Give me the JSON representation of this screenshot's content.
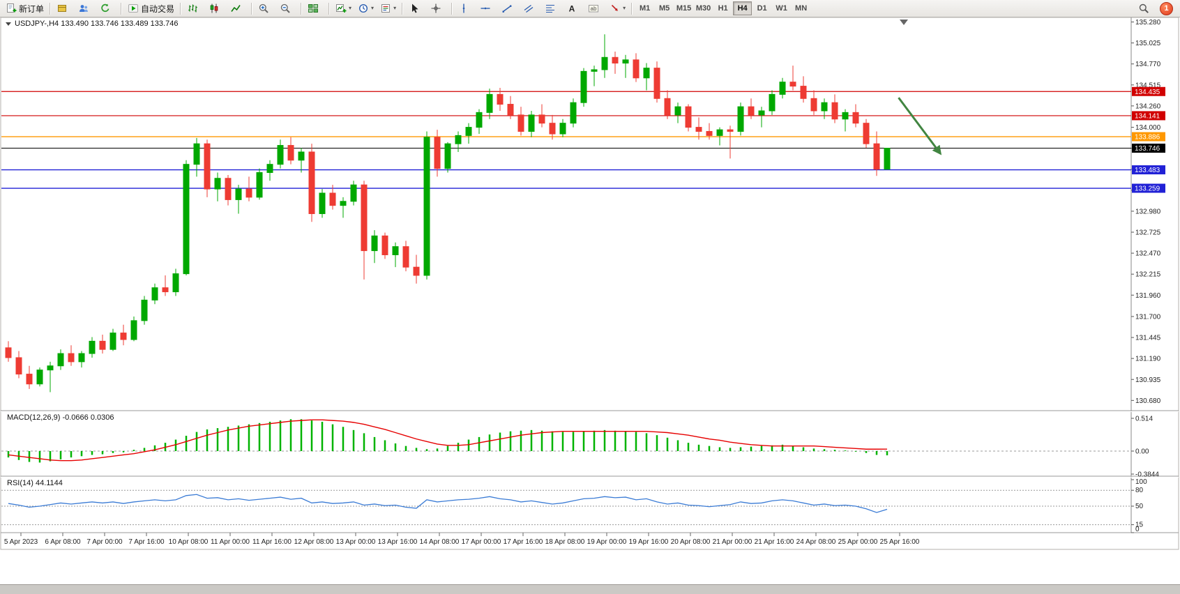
{
  "toolbar": {
    "timeframes": [
      "M1",
      "M5",
      "M15",
      "M30",
      "H1",
      "H4",
      "D1",
      "W1",
      "MN"
    ],
    "active_timeframe": "H4",
    "badge_count": "1",
    "groups": [
      {
        "items": [
          {
            "name": "new-order-button",
            "icon": "doc-plus",
            "label": "新订单"
          }
        ]
      },
      {
        "items": [
          {
            "name": "metaeditor-button",
            "icon": "gold-box"
          },
          {
            "name": "community-button",
            "icon": "users-blue"
          },
          {
            "name": "refresh-button",
            "icon": "refresh"
          }
        ]
      },
      {
        "items": [
          {
            "name": "autotrading-button",
            "icon": "play-green",
            "label": "自动交易"
          }
        ]
      },
      {
        "items": [
          {
            "name": "bar-chart-button",
            "icon": "bars-chart"
          },
          {
            "name": "candlestick-chart-button",
            "icon": "candles-chart"
          },
          {
            "name": "line-chart-button",
            "icon": "line-chart"
          }
        ]
      },
      {
        "items": [
          {
            "name": "zoom-in-button",
            "icon": "zoom-in"
          },
          {
            "name": "zoom-out-button",
            "icon": "zoom-out"
          }
        ]
      },
      {
        "items": [
          {
            "name": "tile-windows-button",
            "icon": "grid-green"
          }
        ]
      },
      {
        "items": [
          {
            "name": "new-chart-dropdown",
            "icon": "chart-plus",
            "dropdown": true
          },
          {
            "name": "periods-dropdown",
            "icon": "clock",
            "dropdown": true
          },
          {
            "name": "templates-dropdown",
            "icon": "template",
            "dropdown": true
          }
        ]
      },
      {
        "items": [
          {
            "name": "cursor-button",
            "icon": "cursor"
          },
          {
            "name": "crosshair-button",
            "icon": "crosshair"
          }
        ]
      },
      {
        "items": [
          {
            "name": "vertical-line-button",
            "icon": "v-line"
          },
          {
            "name": "horizontal-line-button",
            "icon": "h-line"
          },
          {
            "name": "trendline-button",
            "icon": "trend-line"
          },
          {
            "name": "channel-button",
            "icon": "channel"
          },
          {
            "name": "fibonacci-button",
            "icon": "fibo"
          },
          {
            "name": "text-button",
            "icon": "letter-A"
          },
          {
            "name": "label-button",
            "icon": "label-T"
          },
          {
            "name": "arrows-dropdown",
            "icon": "arrow-tool",
            "dropdown": true
          }
        ]
      },
      {
        "timeframes": true
      }
    ],
    "right": [
      {
        "name": "search-button",
        "icon": "search"
      },
      {
        "name": "notification-badge",
        "badge": "1"
      }
    ]
  },
  "chart": {
    "title": "USDJPY-,H4 133.490 133.746 133.489 133.746",
    "macd_label": "MACD(12,26,9) -0.0666 0.0306",
    "rsi_label": "RSI(14) 44.1144"
  },
  "chart_data": [
    {
      "type": "candlestick",
      "symbol": "USDJPY-",
      "period": "H4",
      "bull_color": "#00a800",
      "bear_color": "#ee3b33",
      "ylim": [
        130.68,
        135.31
      ],
      "current": {
        "open": 133.49,
        "high": 133.746,
        "low": 133.489,
        "close": 133.746
      },
      "y_ticks": [
        135.28,
        135.025,
        134.77,
        134.515,
        134.26,
        134.0,
        133.745,
        133.49,
        133.235,
        132.98,
        132.725,
        132.47,
        132.215,
        131.96,
        131.7,
        131.445,
        131.19,
        130.935,
        130.68
      ],
      "hlines": [
        {
          "price": 134.435,
          "color": "#d10000",
          "width": 1.2
        },
        {
          "price": 134.141,
          "color": "#d10000",
          "width": 1.2
        },
        {
          "price": 133.886,
          "color": "#ff9800",
          "width": 1.4
        },
        {
          "price": 133.746,
          "color": "#000000",
          "width": 1.0
        },
        {
          "price": 133.483,
          "color": "#2121d6",
          "width": 1.4
        },
        {
          "price": 133.259,
          "color": "#2121d6",
          "width": 1.4
        }
      ],
      "arrow": {
        "from": [
          85.1,
          134.36
        ],
        "to": [
          89.1,
          133.68
        ],
        "color": "#418541"
      },
      "x_labels": [
        "5 Apr 2023",
        "6 Apr 08:00",
        "7 Apr 00:00",
        "7 Apr 16:00",
        "10 Apr 08:00",
        "11 Apr 00:00",
        "11 Apr 16:00",
        "12 Apr 08:00",
        "13 Apr 00:00",
        "13 Apr 16:00",
        "14 Apr 08:00",
        "17 Apr 00:00",
        "17 Apr 16:00",
        "18 Apr 08:00",
        "19 Apr 00:00",
        "19 Apr 16:00",
        "20 Apr 08:00",
        "21 Apr 00:00",
        "21 Apr 16:00",
        "24 Apr 08:00",
        "25 Apr 00:00",
        "25 Apr 16:00"
      ],
      "ohlc": [
        [
          131.32,
          131.4,
          131.15,
          131.2
        ],
        [
          131.2,
          131.28,
          130.95,
          131.0
        ],
        [
          131.0,
          131.1,
          130.82,
          130.88
        ],
        [
          130.88,
          131.08,
          130.85,
          131.05
        ],
        [
          131.05,
          131.15,
          130.78,
          131.1
        ],
        [
          131.1,
          131.3,
          131.05,
          131.25
        ],
        [
          131.25,
          131.35,
          131.1,
          131.15
        ],
        [
          131.15,
          131.28,
          131.08,
          131.25
        ],
        [
          131.25,
          131.45,
          131.2,
          131.4
        ],
        [
          131.4,
          131.48,
          131.25,
          131.3
        ],
        [
          131.3,
          131.55,
          131.28,
          131.5
        ],
        [
          131.5,
          131.6,
          131.35,
          131.42
        ],
        [
          131.42,
          131.7,
          131.4,
          131.65
        ],
        [
          131.65,
          131.95,
          131.6,
          131.9
        ],
        [
          131.9,
          132.1,
          131.85,
          132.05
        ],
        [
          132.05,
          132.2,
          131.95,
          132.0
        ],
        [
          132.0,
          132.28,
          131.95,
          132.22
        ],
        [
          132.22,
          133.6,
          132.2,
          133.55
        ],
        [
          133.55,
          133.87,
          133.4,
          133.8
        ],
        [
          133.8,
          133.85,
          133.15,
          133.25
        ],
        [
          133.25,
          133.45,
          133.1,
          133.38
        ],
        [
          133.38,
          133.42,
          133.05,
          133.12
        ],
        [
          133.12,
          133.3,
          132.95,
          133.25
        ],
        [
          133.25,
          133.4,
          133.1,
          133.15
        ],
        [
          133.15,
          133.5,
          133.12,
          133.45
        ],
        [
          133.45,
          133.6,
          133.35,
          133.55
        ],
        [
          133.55,
          133.85,
          133.5,
          133.78
        ],
        [
          133.78,
          133.88,
          133.55,
          133.6
        ],
        [
          133.6,
          133.75,
          133.45,
          133.7
        ],
        [
          133.7,
          133.8,
          132.85,
          132.95
        ],
        [
          132.95,
          133.25,
          132.9,
          133.2
        ],
        [
          133.2,
          133.3,
          133.0,
          133.05
        ],
        [
          133.05,
          133.15,
          132.9,
          133.1
        ],
        [
          133.1,
          133.35,
          133.05,
          133.3
        ],
        [
          133.3,
          133.35,
          132.15,
          132.5
        ],
        [
          132.5,
          132.75,
          132.35,
          132.68
        ],
        [
          132.68,
          132.72,
          132.4,
          132.45
        ],
        [
          132.45,
          132.6,
          132.3,
          132.55
        ],
        [
          132.55,
          132.62,
          132.25,
          132.3
        ],
        [
          132.3,
          132.45,
          132.1,
          132.2
        ],
        [
          132.2,
          133.95,
          132.15,
          133.88
        ],
        [
          133.88,
          133.97,
          133.4,
          133.5
        ],
        [
          133.5,
          133.82,
          133.45,
          133.8
        ],
        [
          133.8,
          133.95,
          133.7,
          133.9
        ],
        [
          133.9,
          134.05,
          133.8,
          134.0
        ],
        [
          134.0,
          134.22,
          133.92,
          134.18
        ],
        [
          134.18,
          134.47,
          134.1,
          134.4
        ],
        [
          134.4,
          134.48,
          134.2,
          134.28
        ],
        [
          134.28,
          134.38,
          134.1,
          134.15
        ],
        [
          134.15,
          134.25,
          133.9,
          133.95
        ],
        [
          133.95,
          134.2,
          133.88,
          134.15
        ],
        [
          134.15,
          134.28,
          134.0,
          134.05
        ],
        [
          134.05,
          134.15,
          133.85,
          133.92
        ],
        [
          133.92,
          134.1,
          133.88,
          134.05
        ],
        [
          134.05,
          134.35,
          134.0,
          134.3
        ],
        [
          134.3,
          134.72,
          134.25,
          134.68
        ],
        [
          134.68,
          134.75,
          134.5,
          134.7
        ],
        [
          134.7,
          135.13,
          134.6,
          134.85
        ],
        [
          134.85,
          134.92,
          134.65,
          134.78
        ],
        [
          134.78,
          134.88,
          134.6,
          134.82
        ],
        [
          134.82,
          134.9,
          134.55,
          134.6
        ],
        [
          134.6,
          134.78,
          134.45,
          134.72
        ],
        [
          134.72,
          134.8,
          134.3,
          134.35
        ],
        [
          134.35,
          134.45,
          134.1,
          134.15
        ],
        [
          134.15,
          134.3,
          134.05,
          134.25
        ],
        [
          134.25,
          134.28,
          133.95,
          134.0
        ],
        [
          134.0,
          134.12,
          133.85,
          133.95
        ],
        [
          133.95,
          134.05,
          133.85,
          133.9
        ],
        [
          133.9,
          134.0,
          133.78,
          133.97
        ],
        [
          133.97,
          134.02,
          133.62,
          133.95
        ],
        [
          133.95,
          134.3,
          133.9,
          134.25
        ],
        [
          134.25,
          134.35,
          134.1,
          134.15
        ],
        [
          134.15,
          134.25,
          134.0,
          134.2
        ],
        [
          134.2,
          134.45,
          134.15,
          134.4
        ],
        [
          134.4,
          134.6,
          134.35,
          134.55
        ],
        [
          134.55,
          134.75,
          134.45,
          134.5
        ],
        [
          134.5,
          134.62,
          134.3,
          134.35
        ],
        [
          134.35,
          134.45,
          134.15,
          134.2
        ],
        [
          134.2,
          134.35,
          134.1,
          134.3
        ],
        [
          134.3,
          134.4,
          134.05,
          134.1
        ],
        [
          134.1,
          134.22,
          133.95,
          134.18
        ],
        [
          134.18,
          134.28,
          134.0,
          134.05
        ],
        [
          134.05,
          134.1,
          133.75,
          133.8
        ],
        [
          133.8,
          133.95,
          133.41,
          133.49
        ],
        [
          133.49,
          133.746,
          133.489,
          133.746
        ]
      ]
    },
    {
      "type": "bar",
      "name": "MACD(12,26,9)",
      "current_macd": -0.0666,
      "current_signal": 0.0306,
      "ylim": [
        -0.3844,
        0.514
      ],
      "y_ticks": [
        "0.514",
        "0.00",
        "-0.3844"
      ],
      "y_tick_values": [
        0.514,
        0,
        -0.3844
      ],
      "colors": {
        "hist": "#00b300",
        "signal": "#e60000"
      },
      "hist": [
        -0.1,
        -0.14,
        -0.17,
        -0.18,
        -0.16,
        -0.13,
        -0.1,
        -0.08,
        -0.06,
        -0.05,
        -0.03,
        -0.02,
        0.02,
        0.05,
        0.09,
        0.13,
        0.18,
        0.24,
        0.3,
        0.34,
        0.36,
        0.38,
        0.4,
        0.42,
        0.44,
        0.46,
        0.48,
        0.5,
        0.5,
        0.48,
        0.46,
        0.42,
        0.38,
        0.33,
        0.28,
        0.22,
        0.17,
        0.12,
        0.08,
        0.05,
        0.03,
        0.04,
        0.08,
        0.13,
        0.18,
        0.22,
        0.26,
        0.29,
        0.31,
        0.32,
        0.33,
        0.32,
        0.31,
        0.3,
        0.3,
        0.31,
        0.32,
        0.33,
        0.32,
        0.31,
        0.3,
        0.28,
        0.25,
        0.21,
        0.17,
        0.13,
        0.1,
        0.08,
        0.06,
        0.05,
        0.06,
        0.07,
        0.08,
        0.09,
        0.1,
        0.08,
        0.06,
        0.04,
        0.03,
        0.02,
        0.01,
        -0.01,
        -0.03,
        -0.06,
        -0.0666
      ],
      "signal": [
        -0.06,
        -0.08,
        -0.1,
        -0.12,
        -0.14,
        -0.15,
        -0.15,
        -0.14,
        -0.12,
        -0.1,
        -0.08,
        -0.06,
        -0.04,
        -0.01,
        0.02,
        0.06,
        0.1,
        0.15,
        0.2,
        0.25,
        0.29,
        0.33,
        0.36,
        0.39,
        0.41,
        0.43,
        0.45,
        0.47,
        0.48,
        0.49,
        0.49,
        0.48,
        0.47,
        0.45,
        0.42,
        0.38,
        0.34,
        0.29,
        0.24,
        0.19,
        0.15,
        0.11,
        0.09,
        0.09,
        0.1,
        0.13,
        0.16,
        0.19,
        0.22,
        0.25,
        0.27,
        0.29,
        0.3,
        0.31,
        0.31,
        0.31,
        0.31,
        0.31,
        0.31,
        0.31,
        0.31,
        0.31,
        0.3,
        0.29,
        0.27,
        0.25,
        0.22,
        0.19,
        0.17,
        0.14,
        0.12,
        0.1,
        0.09,
        0.08,
        0.08,
        0.08,
        0.08,
        0.08,
        0.07,
        0.06,
        0.05,
        0.04,
        0.03,
        0.03,
        0.0306
      ]
    },
    {
      "type": "line",
      "name": "RSI(14)",
      "current": 44.1144,
      "ylim": [
        0,
        100
      ],
      "levels": [
        80,
        50,
        15
      ],
      "y_ticks": [
        "100",
        "80",
        "50",
        "15",
        "0"
      ],
      "y_tick_values": [
        100,
        80,
        50,
        15,
        0
      ],
      "color": "#3a7bd5",
      "values": [
        55,
        52,
        48,
        50,
        53,
        56,
        54,
        56,
        58,
        56,
        58,
        55,
        58,
        60,
        62,
        60,
        62,
        70,
        72,
        65,
        66,
        62,
        64,
        61,
        63,
        65,
        67,
        63,
        65,
        56,
        58,
        55,
        56,
        58,
        52,
        54,
        51,
        52,
        48,
        46,
        62,
        58,
        60,
        62,
        63,
        65,
        68,
        64,
        62,
        58,
        60,
        57,
        54,
        56,
        60,
        64,
        65,
        68,
        66,
        67,
        62,
        64,
        58,
        54,
        56,
        52,
        51,
        49,
        51,
        53,
        58,
        55,
        56,
        60,
        62,
        60,
        56,
        52,
        54,
        51,
        52,
        50,
        45,
        38,
        44.11
      ]
    }
  ]
}
